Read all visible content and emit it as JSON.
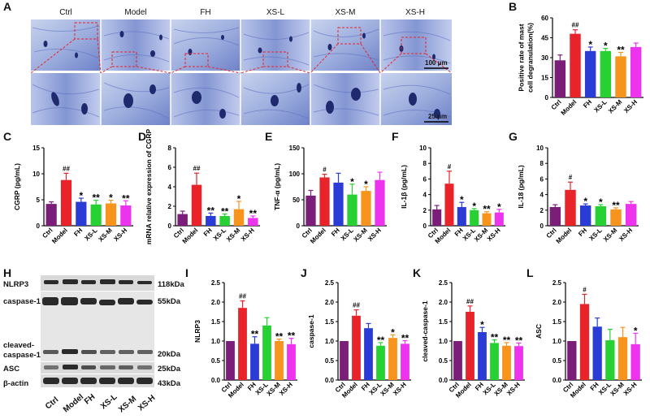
{
  "palette": {
    "Ctrl": "#7b1e7a",
    "Model": "#e8232a",
    "FH": "#2b3bd6",
    "XS-L": "#27d133",
    "XS-M": "#f7941d",
    "XS-H": "#ee33ee"
  },
  "panel_letters": [
    "A",
    "B",
    "C",
    "D",
    "E",
    "F",
    "G",
    "H",
    "I",
    "J",
    "K",
    "L"
  ],
  "micrographs": {
    "titles": [
      "Ctrl",
      "Model",
      "FH",
      "XS-L",
      "XS-M",
      "XS-H"
    ],
    "scale_top": "100 μm",
    "scale_bottom": "25 μm"
  },
  "blot": {
    "rows": [
      "NLRP3",
      "caspase-1",
      "cleaved-\ncaspase-1",
      "ASC",
      "β-actin"
    ],
    "kda": [
      "118kDa",
      "55kDa",
      "20kDa",
      "25kDa",
      "43kDa"
    ],
    "lanes": [
      "Ctrl",
      "Model",
      "FH",
      "XS-L",
      "XS-M",
      "XS-H"
    ]
  },
  "chart_data": [
    {
      "id": "B",
      "type": "bar",
      "categories": [
        "Ctrl",
        "Model",
        "FH",
        "XS-L",
        "XS-M",
        "XS-H"
      ],
      "values": [
        28,
        48,
        35,
        35,
        31,
        38
      ],
      "errors": [
        4,
        3,
        3,
        2,
        3,
        3
      ],
      "marks": [
        "",
        "##",
        "*",
        "*",
        "**",
        ""
      ],
      "ylabel": "Positive rate of mast\ncell degranulation(%)",
      "ylim": [
        0,
        60
      ],
      "yticks": [
        0,
        15,
        30,
        45,
        60
      ]
    },
    {
      "id": "C",
      "type": "bar",
      "categories": [
        "Ctrl",
        "Model",
        "FH",
        "XS-L",
        "XS-M",
        "XS-H"
      ],
      "values": [
        4.2,
        8.8,
        4.6,
        4.1,
        4.3,
        3.9
      ],
      "errors": [
        0.4,
        1.3,
        0.7,
        0.8,
        0.6,
        0.9
      ],
      "marks": [
        "",
        "##",
        "*",
        "**",
        "*",
        "**"
      ],
      "ylabel": "CGRP  (pg/mL)",
      "ylim": [
        0,
        15
      ],
      "yticks": [
        0,
        5,
        10,
        15
      ]
    },
    {
      "id": "D",
      "type": "bar",
      "categories": [
        "Ctrl",
        "Model",
        "FH",
        "XS-L",
        "XS-M",
        "XS-H"
      ],
      "values": [
        1.2,
        4.2,
        1.0,
        1.0,
        1.7,
        0.8
      ],
      "errors": [
        0.3,
        1.2,
        0.3,
        0.2,
        0.8,
        0.2
      ],
      "marks": [
        "",
        "##",
        "**",
        "**",
        "*",
        "**"
      ],
      "ylabel": "mRNA relative expression of CGRP",
      "ylim": [
        0,
        8
      ],
      "yticks": [
        0,
        2,
        4,
        6,
        8
      ]
    },
    {
      "id": "E",
      "type": "bar",
      "categories": [
        "Ctrl",
        "Model",
        "FH",
        "XS-L",
        "XS-M",
        "XS-H"
      ],
      "values": [
        58,
        93,
        83,
        60,
        67,
        88
      ],
      "errors": [
        10,
        6,
        18,
        20,
        8,
        15
      ],
      "marks": [
        "",
        "#",
        "",
        "*",
        "*",
        ""
      ],
      "ylabel": "TNF-α  (pg/mL)",
      "ylim": [
        0,
        150
      ],
      "yticks": [
        0,
        50,
        100,
        150
      ]
    },
    {
      "id": "F",
      "type": "bar",
      "categories": [
        "Ctrl",
        "Model",
        "FH",
        "XS-L",
        "XS-M",
        "XS-H"
      ],
      "values": [
        2.1,
        5.4,
        2.4,
        2.0,
        1.6,
        1.7
      ],
      "errors": [
        0.5,
        1.6,
        0.6,
        0.2,
        0.2,
        0.4
      ],
      "marks": [
        "",
        "#",
        "*",
        "*",
        "**",
        "*"
      ],
      "ylabel": "IL-1β  (pg/mL)",
      "ylim": [
        0,
        10
      ],
      "yticks": [
        0,
        2,
        4,
        6,
        8,
        10
      ]
    },
    {
      "id": "G",
      "type": "bar",
      "categories": [
        "Ctrl",
        "Model",
        "FH",
        "XS-L",
        "XS-M",
        "XS-H"
      ],
      "values": [
        2.4,
        4.6,
        2.6,
        2.5,
        2.1,
        2.8
      ],
      "errors": [
        0.3,
        1.0,
        0.2,
        0.2,
        0.2,
        0.3
      ],
      "marks": [
        "",
        "#",
        "*",
        "*",
        "**",
        ""
      ],
      "ylabel": "IL-18  (pg/mL)",
      "ylim": [
        0,
        10
      ],
      "yticks": [
        0,
        2,
        4,
        6,
        8,
        10
      ]
    },
    {
      "id": "I",
      "type": "bar",
      "categories": [
        "Ctrl",
        "Model",
        "FH",
        "XS-L",
        "XS-M",
        "XS-H"
      ],
      "values": [
        1.0,
        1.85,
        0.93,
        1.4,
        1.0,
        0.92
      ],
      "errors": [
        0.0,
        0.18,
        0.18,
        0.2,
        0.05,
        0.15
      ],
      "marks": [
        "",
        "##",
        "**",
        "",
        "**",
        "**"
      ],
      "ylabel": "NLRP3",
      "ylim": [
        0,
        2.5
      ],
      "yticks": [
        0.0,
        0.5,
        1.0,
        1.5,
        2.0,
        2.5
      ]
    },
    {
      "id": "J",
      "type": "bar",
      "categories": [
        "Ctrl",
        "Model",
        "FH",
        "XS-L",
        "XS-M",
        "XS-H"
      ],
      "values": [
        1.0,
        1.65,
        1.33,
        0.88,
        1.08,
        0.93
      ],
      "errors": [
        0.0,
        0.15,
        0.12,
        0.08,
        0.08,
        0.08
      ],
      "marks": [
        "",
        "##",
        "",
        "**",
        "*",
        "**"
      ],
      "ylabel": "caspase-1",
      "ylim": [
        0,
        2.5
      ],
      "yticks": [
        0.0,
        0.5,
        1.0,
        1.5,
        2.0,
        2.5
      ]
    },
    {
      "id": "K",
      "type": "bar",
      "categories": [
        "Ctrl",
        "Model",
        "FH",
        "XS-L",
        "XS-M",
        "XS-H"
      ],
      "values": [
        1.0,
        1.75,
        1.23,
        0.95,
        0.88,
        0.87
      ],
      "errors": [
        0.0,
        0.15,
        0.12,
        0.08,
        0.08,
        0.08
      ],
      "marks": [
        "",
        "##",
        "*",
        "**",
        "**",
        "**"
      ],
      "ylabel": "cleaved-caspase-1",
      "ylim": [
        0,
        2.5
      ],
      "yticks": [
        0.0,
        0.5,
        1.0,
        1.5,
        2.0,
        2.5
      ]
    },
    {
      "id": "L",
      "type": "bar",
      "categories": [
        "Ctrl",
        "Model",
        "FH",
        "XS-L",
        "XS-M",
        "XS-H"
      ],
      "values": [
        1.0,
        1.95,
        1.37,
        1.02,
        1.1,
        0.92
      ],
      "errors": [
        0.0,
        0.25,
        0.22,
        0.28,
        0.25,
        0.28
      ],
      "marks": [
        "",
        "#",
        "",
        "",
        "",
        "*"
      ],
      "ylabel": "ASC",
      "ylim": [
        0,
        2.5
      ],
      "yticks": [
        0.0,
        0.5,
        1.0,
        1.5,
        2.0,
        2.5
      ]
    }
  ]
}
